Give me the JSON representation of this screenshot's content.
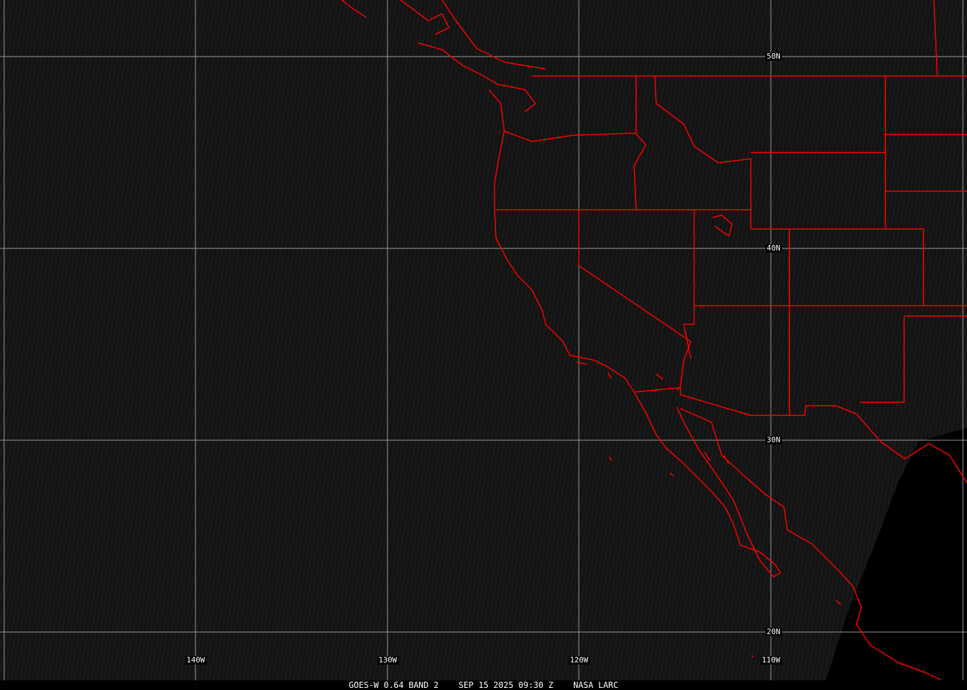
{
  "image": {
    "caption": {
      "satellite": "GOES-W 0.64 BAND 2",
      "datetime": "SEP 15 2025 09:30 Z",
      "source": "NASA LARC"
    },
    "latitude_labels": [
      "50N",
      "40N",
      "30N",
      "20N"
    ],
    "longitude_labels": [
      "140W",
      "130W",
      "120W",
      "110W"
    ],
    "colors": {
      "boundaries": "#ff0000",
      "grid": "#9a9a9a",
      "background": "#141414"
    }
  }
}
